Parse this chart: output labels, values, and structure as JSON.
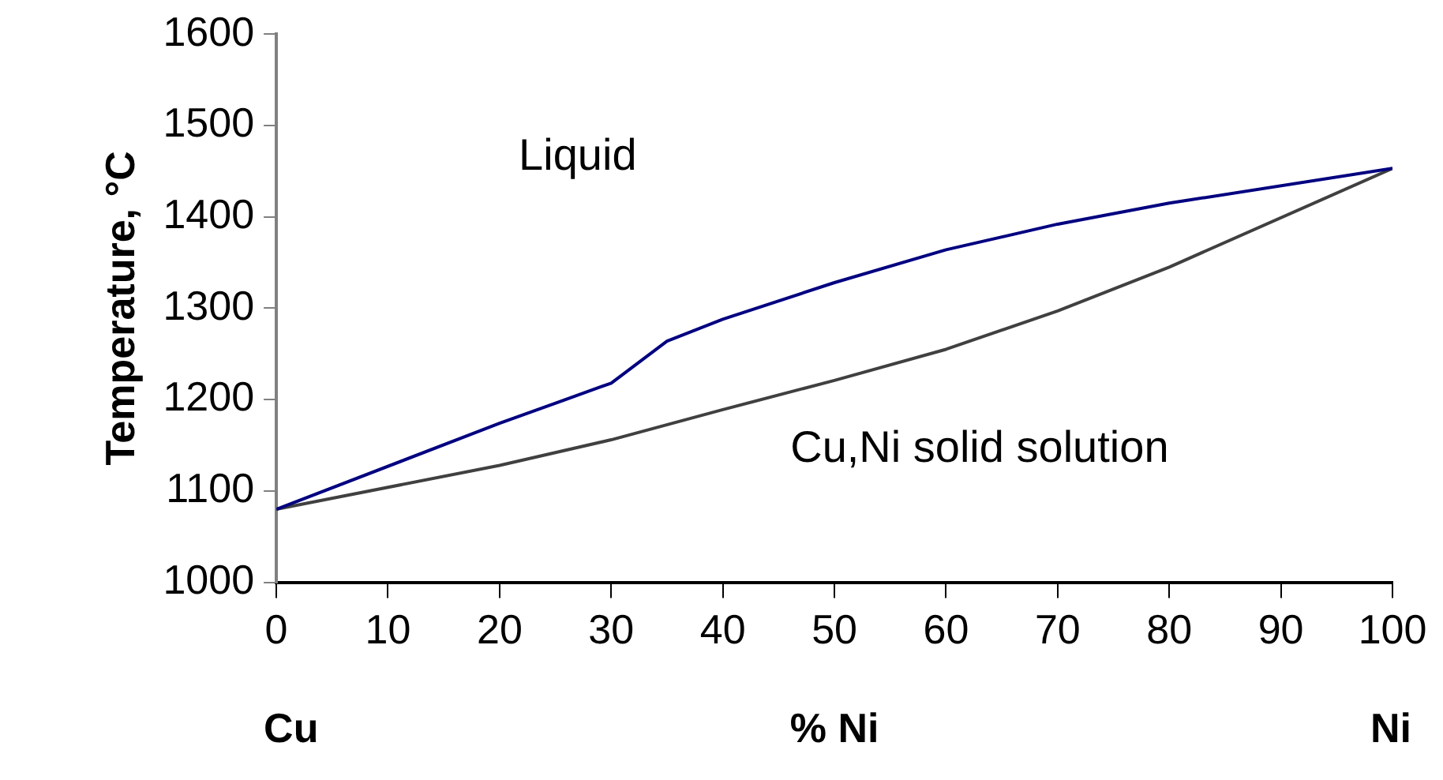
{
  "chart_data": {
    "type": "line",
    "xlabel": "% Ni",
    "ylabel": "Temperature, °C",
    "xlim": [
      0,
      100
    ],
    "xticks": [
      0,
      10,
      20,
      30,
      40,
      50,
      60,
      70,
      80,
      90,
      100
    ],
    "ylim": [
      1000,
      1600
    ],
    "yticks": [
      1000,
      1100,
      1200,
      1300,
      1400,
      1500,
      1600
    ],
    "grid": false,
    "legend": false,
    "marker": "none",
    "line_style": "solid",
    "series": [
      {
        "color": "#000080",
        "x": [
          0,
          20,
          30,
          35,
          40,
          50,
          60,
          70,
          80,
          100
        ],
        "values": [
          1080,
          1174,
          1218,
          1264,
          1288,
          1328,
          1364,
          1392,
          1415,
          1453
        ]
      },
      {
        "color": "#404040",
        "x": [
          0,
          20,
          30,
          40,
          50,
          60,
          70,
          80,
          100
        ],
        "values": [
          1080,
          1128,
          1156,
          1189,
          1221,
          1255,
          1297,
          1345,
          1453
        ]
      }
    ],
    "annotations": [
      "Liquid",
      "Cu,Ni solid solution",
      "Cu",
      "Ni"
    ]
  }
}
